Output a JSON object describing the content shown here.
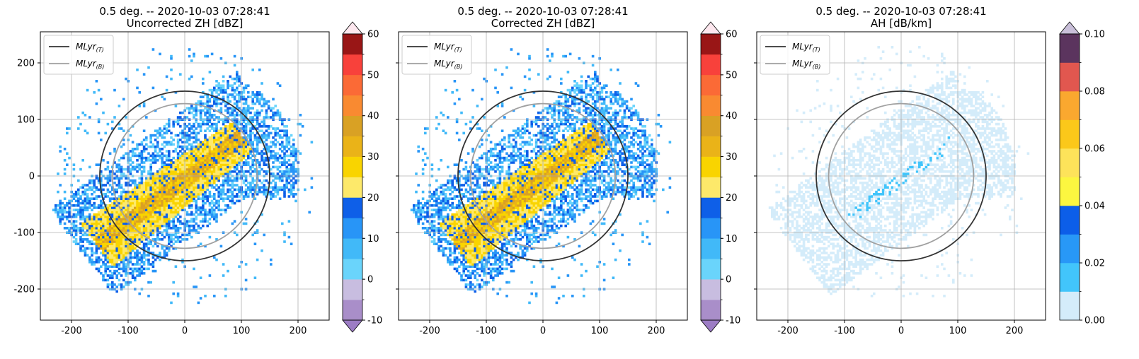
{
  "chart_data": [
    {
      "type": "heatmap",
      "title_line1": "0.5 deg. -- 2020-10-03 07:28:41",
      "title_line2": "Uncorrected ZH [dBZ]",
      "xlim": [
        -255,
        255
      ],
      "ylim": [
        -255,
        255
      ],
      "xticks": [
        "-200",
        "-100",
        "0",
        "100",
        "200"
      ],
      "yticks": [
        "200",
        "100",
        "0",
        "-100",
        "-200"
      ],
      "grid": true,
      "legend_placement": "upper-left",
      "legend": [
        {
          "main": "MLyr",
          "sub": "(T)",
          "color": "#333333"
        },
        {
          "main": "MLyr",
          "sub": "(B)",
          "color": "#a0a0a0"
        }
      ],
      "rings_km": {
        "top": 150,
        "bottom": 128
      },
      "echo": "zh",
      "colorbar": {
        "range": [
          -10,
          60
        ],
        "ticks": [
          "-10",
          "0",
          "10",
          "20",
          "30",
          "40",
          "50",
          "60"
        ],
        "extend": "both",
        "colors": [
          "#a98ec9",
          "#c8bde0",
          "#6ad4fb",
          "#41b9f8",
          "#2895f7",
          "#0e5fe8",
          "#fde96a",
          "#f9d400",
          "#eab318",
          "#d9a124",
          "#f98a31",
          "#fb6a36",
          "#f8413b",
          "#991616"
        ],
        "over_color": "#fde7ee",
        "under_color": "#9c7cc4"
      }
    },
    {
      "type": "heatmap",
      "title_line1": "0.5 deg. -- 2020-10-03 07:28:41",
      "title_line2": "Corrected ZH [dBZ]",
      "xlim": [
        -255,
        255
      ],
      "ylim": [
        -255,
        255
      ],
      "xticks": [
        "-200",
        "-100",
        "0",
        "100",
        "200"
      ],
      "yticks": [],
      "grid": true,
      "legend_placement": "upper-left",
      "legend": [
        {
          "main": "MLyr",
          "sub": "(T)",
          "color": "#333333"
        },
        {
          "main": "MLyr",
          "sub": "(B)",
          "color": "#a0a0a0"
        }
      ],
      "rings_km": {
        "top": 150,
        "bottom": 128
      },
      "echo": "zh",
      "colorbar": {
        "range": [
          -10,
          60
        ],
        "ticks": [
          "-10",
          "0",
          "10",
          "20",
          "30",
          "40",
          "50",
          "60"
        ],
        "extend": "both",
        "colors": [
          "#a98ec9",
          "#c8bde0",
          "#6ad4fb",
          "#41b9f8",
          "#2895f7",
          "#0e5fe8",
          "#fde96a",
          "#f9d400",
          "#eab318",
          "#d9a124",
          "#f98a31",
          "#fb6a36",
          "#f8413b",
          "#991616"
        ],
        "over_color": "#fde7ee",
        "under_color": "#9c7cc4"
      }
    },
    {
      "type": "heatmap",
      "title_line1": "0.5 deg. -- 2020-10-03 07:28:41",
      "title_line2": "AH [dB/km]",
      "xlim": [
        -255,
        255
      ],
      "ylim": [
        -255,
        255
      ],
      "xticks": [
        "-200",
        "-100",
        "0",
        "100",
        "200"
      ],
      "yticks": [],
      "grid": true,
      "legend_placement": "upper-left",
      "legend": [
        {
          "main": "MLyr",
          "sub": "(T)",
          "color": "#333333"
        },
        {
          "main": "MLyr",
          "sub": "(B)",
          "color": "#a0a0a0"
        }
      ],
      "rings_km": {
        "top": 150,
        "bottom": 128
      },
      "echo": "ah",
      "colorbar": {
        "range": [
          0.0,
          0.1
        ],
        "ticks": [
          "0.00",
          "0.02",
          "0.04",
          "0.06",
          "0.08",
          "0.10"
        ],
        "extend": "max",
        "colors": [
          "#d4ecfa",
          "#42c5fb",
          "#2898f7",
          "#0c5ee8",
          "#fcf640",
          "#fde35a",
          "#fbc81a",
          "#faa82f",
          "#e1574f",
          "#5b345e"
        ],
        "over_color": "#c9bfd9"
      }
    }
  ]
}
